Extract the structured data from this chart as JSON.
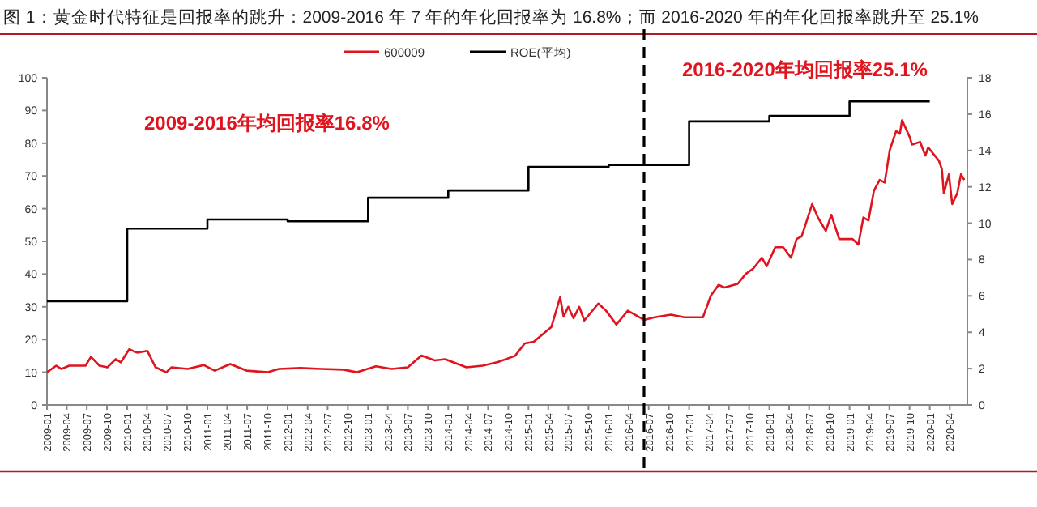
{
  "chart_data": {
    "type": "line",
    "title": "图 1：黄金时代特征是回报率的跳升：2009-2016 年 7 年的年化回报率为 16.8%；而 2016-2020 年的年化回报率跳升至 25.1%",
    "annotations": [
      "2009-2016年均回报率16.8%",
      "2016-2020年均回报率25.1%"
    ],
    "series": [
      {
        "name": "600009",
        "color": "#e0141e",
        "x": [
          "2009-01-01",
          "2009-02-12",
          "2009-03-08",
          "2009-04-12",
          "2009-06-25",
          "2009-07-20",
          "2009-08-28",
          "2009-10-03",
          "2009-11-10",
          "2009-12-03",
          "2010-01-10",
          "2010-02-15",
          "2010-04-03",
          "2010-05-10",
          "2010-06-28",
          "2010-07-22",
          "2010-10-03",
          "2010-12-15",
          "2011-02-03",
          "2011-04-15",
          "2011-06-28",
          "2011-10-03",
          "2011-11-22",
          "2012-02-28",
          "2012-06-03",
          "2012-09-10",
          "2012-11-12",
          "2013-02-06",
          "2013-04-18",
          "2013-07-01",
          "2013-09-01",
          "2013-11-01",
          "2013-12-18",
          "2014-03-25",
          "2014-06-06",
          "2014-08-15",
          "2014-11-01",
          "2014-12-15",
          "2015-01-25",
          "2015-04-15",
          "2015-05-25",
          "2015-06-10",
          "2015-07-01",
          "2015-07-25",
          "2015-08-20",
          "2015-09-12",
          "2015-11-15",
          "2015-12-20",
          "2016-02-05",
          "2016-03-28",
          "2016-06-10",
          "2016-07-28",
          "2016-10-10",
          "2016-12-10",
          "2017-03-05",
          "2017-04-10",
          "2017-05-15",
          "2017-06-10",
          "2017-08-10",
          "2017-09-15",
          "2017-10-20",
          "2017-11-28",
          "2017-12-20",
          "2018-01-28",
          "2018-03-05",
          "2018-04-10",
          "2018-05-05",
          "2018-05-28",
          "2018-07-15",
          "2018-08-10",
          "2018-09-15",
          "2018-10-10",
          "2018-11-15",
          "2019-01-15",
          "2019-02-10",
          "2019-03-05",
          "2019-03-28",
          "2019-04-22",
          "2019-05-18",
          "2019-06-10",
          "2019-07-03",
          "2019-08-01",
          "2019-08-18",
          "2019-08-28",
          "2019-10-01",
          "2019-10-12",
          "2019-11-18",
          "2019-12-12",
          "2019-12-25",
          "2020-02-12",
          "2020-02-25",
          "2020-03-05",
          "2020-03-28",
          "2020-04-12",
          "2020-05-05",
          "2020-05-22",
          "2020-06-06"
        ],
        "values": [
          10,
          12,
          11,
          12,
          12,
          14.7,
          12,
          11.5,
          14,
          13,
          17,
          16,
          16.5,
          11.5,
          10,
          11.5,
          11,
          12.2,
          10.5,
          12.5,
          10.5,
          10,
          11,
          11.3,
          11,
          10.8,
          10,
          11.8,
          11,
          11.5,
          15.1,
          13.6,
          14,
          11.5,
          12,
          13.1,
          15,
          18.8,
          19.3,
          23.8,
          32.9,
          27,
          30,
          26.5,
          30,
          25.8,
          31,
          28.8,
          24.6,
          28.8,
          26,
          26.8,
          27.6,
          26.8,
          26.8,
          33.4,
          36.7,
          35.9,
          37,
          40,
          41.7,
          45,
          42.4,
          48.2,
          48.2,
          45,
          50.7,
          51.5,
          61.4,
          57.3,
          53.2,
          58.1,
          50.7,
          50.7,
          49,
          57.3,
          56.4,
          65.5,
          68.8,
          68,
          77.9,
          83.7,
          82.9,
          87,
          82,
          79.6,
          80.4,
          76.2,
          78.7,
          74.6,
          72.1,
          64.7,
          70.5,
          61.4,
          64.7,
          70.5,
          68.8
        ]
      },
      {
        "name": "ROE(平均)",
        "type": "step",
        "axis": "y2",
        "color": "#000000",
        "x": [
          "2009-01-01",
          "2010-01-01",
          "2011-01-01",
          "2012-01-01",
          "2013-01-01",
          "2014-01-01",
          "2015-01-01",
          "2016-01-01",
          "2017-01-01",
          "2018-01-01",
          "2019-01-01",
          "2020-01-01"
        ],
        "values": [
          5.7,
          9.7,
          10.2,
          10.1,
          11.4,
          11.8,
          13.1,
          13.2,
          15.6,
          15.9,
          16.7,
          16.7
        ]
      }
    ],
    "xlim": [
      "2009-01-01",
      "2020-06-20"
    ],
    "xticks": [
      "2009-01",
      "2009-04",
      "2009-07",
      "2009-10",
      "2010-01",
      "2010-04",
      "2010-07",
      "2010-10",
      "2011-01",
      "2011-04",
      "2011-07",
      "2011-10",
      "2012-01",
      "2012-04",
      "2012-07",
      "2012-10",
      "2013-01",
      "2013-04",
      "2013-07",
      "2013-10",
      "2014-01",
      "2014-04",
      "2014-07",
      "2014-10",
      "2015-01",
      "2015-04",
      "2015-07",
      "2015-10",
      "2016-01",
      "2016-04",
      "2016-07",
      "2016-10",
      "2017-01",
      "2017-04",
      "2017-07",
      "2017-10",
      "2018-01",
      "2018-04",
      "2018-07",
      "2018-10",
      "2019-01",
      "2019-04",
      "2019-07",
      "2019-10",
      "2020-01",
      "2020-04"
    ],
    "ylim": [
      0,
      100
    ],
    "yticks": [
      0,
      10,
      20,
      30,
      40,
      50,
      60,
      70,
      80,
      90,
      100
    ],
    "y2lim": [
      0,
      18
    ],
    "y2ticks": [
      0,
      2,
      4,
      6,
      8,
      10,
      12,
      14,
      16,
      18
    ],
    "ref_lines": [
      {
        "axis": "x",
        "value": "2016-06-10",
        "color": "#000000",
        "line_style": "dashed"
      }
    ],
    "legend": "top",
    "grid": false,
    "line_style": "solid",
    "marker": "none"
  }
}
